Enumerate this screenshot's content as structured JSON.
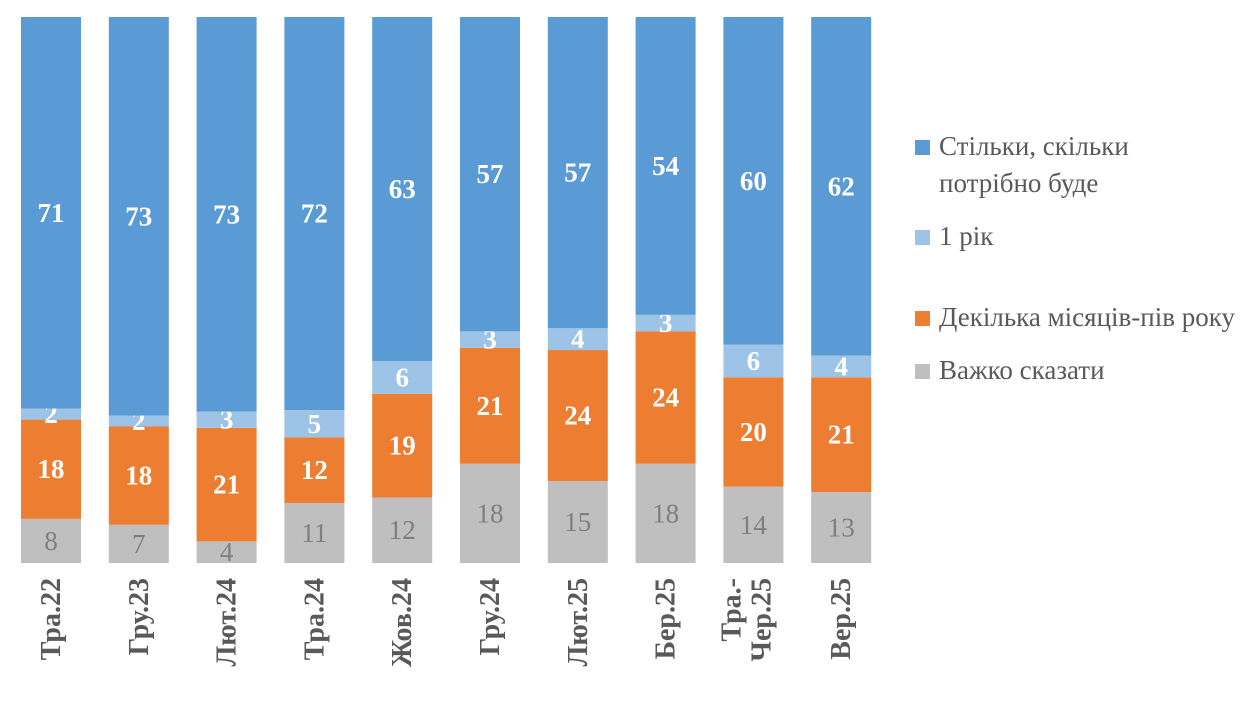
{
  "chart_data": {
    "type": "stacked-bar-100",
    "categories": [
      "Тра.22",
      "Гру.23",
      "Лют.24",
      "Тра.24",
      "Жов.24",
      "Гру.24",
      "Лют.25",
      "Бер.25",
      "Тра.-Чер.25",
      "Вер.25"
    ],
    "series": [
      {
        "name": "Важко сказати",
        "color": "#BFBFBF",
        "label_color": "#7F7F7F",
        "values": [
          8,
          7,
          4,
          11,
          12,
          18,
          15,
          18,
          14,
          13
        ]
      },
      {
        "name": "Декілька місяців-пів року",
        "color": "#ED7D31",
        "label_color": "#FFFFFF",
        "values": [
          18,
          18,
          21,
          12,
          19,
          21,
          24,
          24,
          20,
          21
        ]
      },
      {
        "name": "1 рік",
        "color": "#9DC3E6",
        "label_color": "#FFFFFF",
        "values": [
          2,
          2,
          3,
          5,
          6,
          3,
          4,
          3,
          6,
          4
        ]
      },
      {
        "name": "Стільки, скільки потрібно буде",
        "color": "#5B9BD5",
        "label_color": "#FFFFFF",
        "values": [
          71,
          73,
          73,
          72,
          63,
          57,
          57,
          54,
          60,
          62
        ]
      }
    ],
    "legend_order": [
      3,
      2,
      1,
      0
    ],
    "legend_position": "right",
    "grid": false
  }
}
